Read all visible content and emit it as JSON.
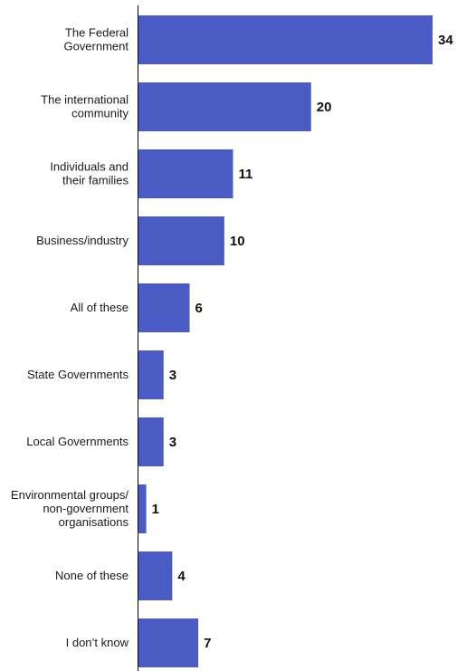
{
  "chart_data": {
    "type": "bar",
    "orientation": "horizontal",
    "categories": [
      [
        "The Federal",
        "Government"
      ],
      [
        "The international",
        "community"
      ],
      [
        "Individuals and",
        "their families"
      ],
      [
        "Business/industry"
      ],
      [
        "All of these"
      ],
      [
        "State Governments"
      ],
      [
        "Local Governments"
      ],
      [
        "Environmental groups/",
        "non-government",
        "organisations"
      ],
      [
        "None of these"
      ],
      [
        "I don’t know"
      ]
    ],
    "values": [
      34,
      20,
      11,
      10,
      6,
      3,
      3,
      1,
      4,
      7
    ],
    "xlim": [
      0,
      34
    ],
    "bar_color": "#4a5bc4",
    "grid": false,
    "legend": "none"
  }
}
